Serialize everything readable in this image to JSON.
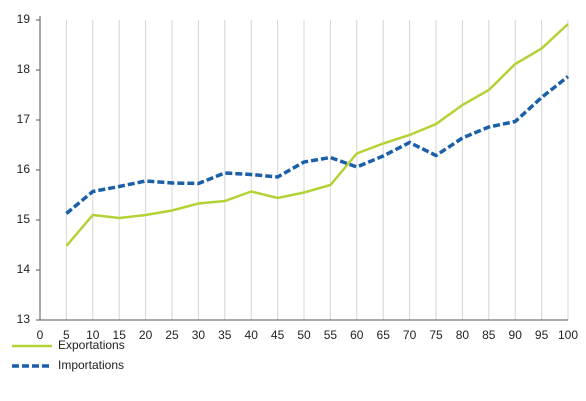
{
  "chart_data": {
    "type": "line",
    "x": [
      5,
      10,
      15,
      20,
      25,
      30,
      35,
      40,
      45,
      50,
      55,
      60,
      65,
      70,
      75,
      80,
      85,
      90,
      95,
      100
    ],
    "series": [
      {
        "name": "Exportations",
        "color": "#b2d235",
        "dashed": false,
        "values": [
          14.48,
          15.1,
          15.04,
          15.1,
          15.19,
          15.33,
          15.38,
          15.57,
          15.44,
          15.55,
          15.7,
          16.33,
          16.53,
          16.7,
          16.92,
          17.3,
          17.6,
          18.12,
          18.43,
          18.92
        ]
      },
      {
        "name": "Importations",
        "color": "#1a5fa8",
        "dashed": true,
        "values": [
          15.13,
          15.57,
          15.67,
          15.78,
          15.74,
          15.73,
          15.94,
          15.91,
          15.86,
          16.16,
          16.25,
          16.06,
          16.28,
          16.55,
          16.29,
          16.64,
          16.86,
          16.97,
          17.45,
          17.87
        ]
      }
    ],
    "xlim": [
      0,
      100
    ],
    "xticks": [
      0,
      5,
      10,
      15,
      20,
      25,
      30,
      35,
      40,
      45,
      50,
      55,
      60,
      65,
      70,
      75,
      80,
      85,
      90,
      95,
      100
    ],
    "ylim": [
      13,
      19
    ],
    "yticks": [
      13,
      14,
      15,
      16,
      17,
      18,
      19
    ],
    "grid": "x",
    "legend": "bottom-left"
  }
}
